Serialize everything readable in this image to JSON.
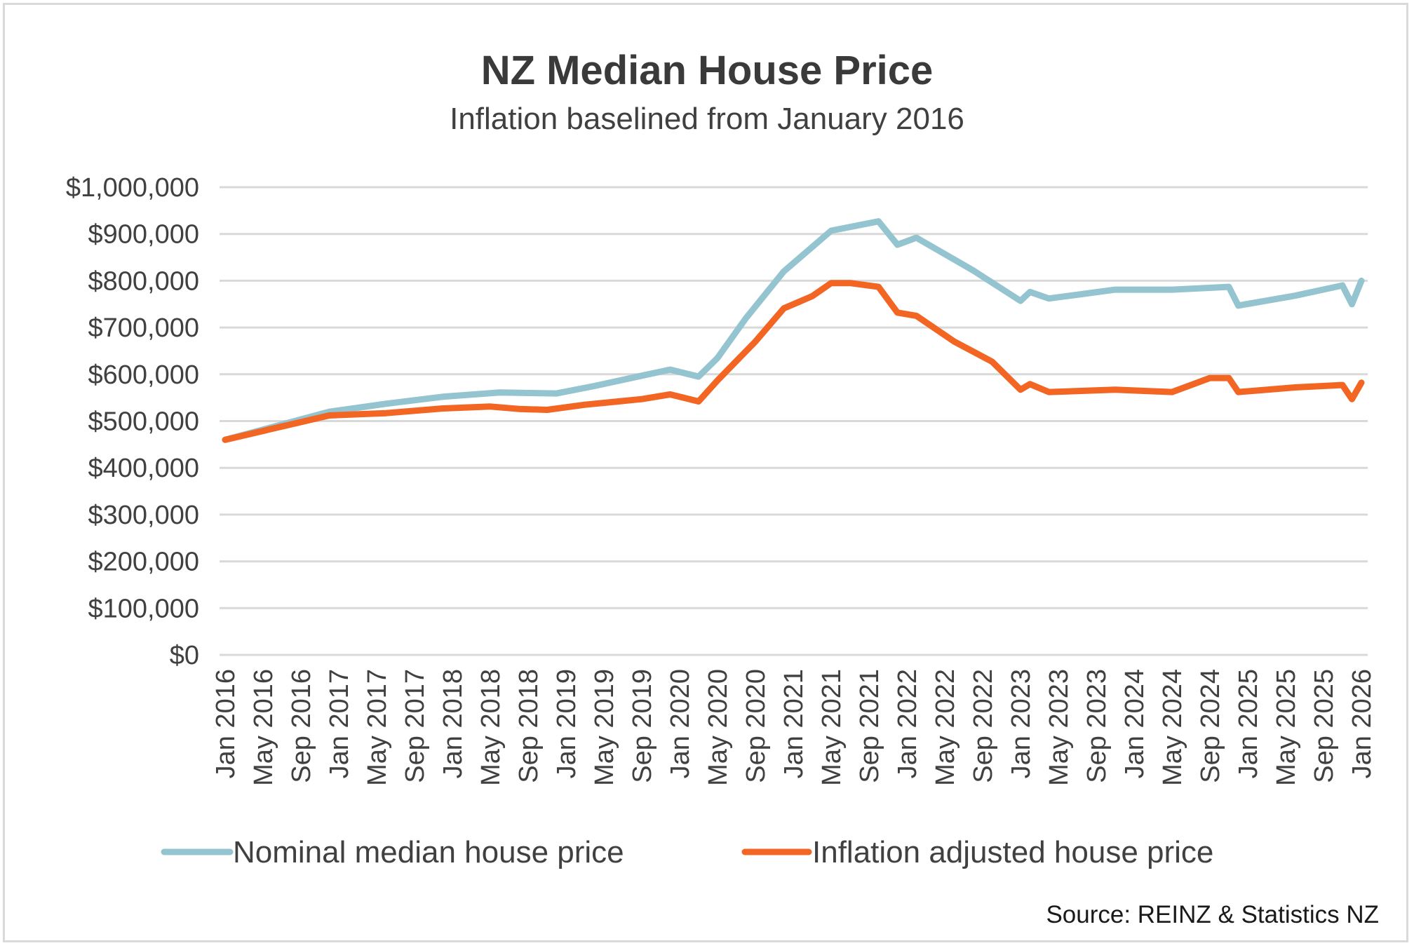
{
  "chart_data": {
    "type": "line",
    "title": "NZ Median House Price",
    "subtitle": "Inflation baselined from January 2016",
    "xlabel": "",
    "ylabel": "",
    "ylim": [
      0,
      1000000
    ],
    "y_ticks": [
      "$0",
      "$100,000",
      "$200,000",
      "$300,000",
      "$400,000",
      "$500,000",
      "$600,000",
      "$700,000",
      "$800,000",
      "$900,000",
      "$1,000,000"
    ],
    "x_range": [
      "2016-01",
      "2026-01"
    ],
    "x_ticks": [
      "Jan 2016",
      "May 2016",
      "Sep 2016",
      "Jan 2017",
      "May 2017",
      "Sep 2017",
      "Jan 2018",
      "May 2018",
      "Sep 2018",
      "Jan 2019",
      "May 2019",
      "Sep 2019",
      "Jan 2020",
      "May 2020",
      "Sep 2020",
      "Jan 2021",
      "May 2021",
      "Sep 2021",
      "Jan 2022",
      "May 2022",
      "Sep 2022",
      "Jan 2023",
      "May 2023",
      "Sep 2023",
      "Jan 2024",
      "May 2024",
      "Sep 2024",
      "Jan 2025",
      "May 2025",
      "Sep 2025",
      "Jan 2026"
    ],
    "grid": true,
    "legend_position": "bottom",
    "source": "Source: REINZ & Statistics NZ",
    "series": [
      {
        "name": "Nominal median house price",
        "color": "#93c4cf",
        "points": [
          [
            "2016-01",
            460000
          ],
          [
            "2016-12",
            520000
          ],
          [
            "2017-06",
            537000
          ],
          [
            "2017-12",
            552000
          ],
          [
            "2018-06",
            561000
          ],
          [
            "2018-12",
            559000
          ],
          [
            "2019-04",
            575000
          ],
          [
            "2019-09",
            597000
          ],
          [
            "2019-12",
            610000
          ],
          [
            "2020-03",
            595000
          ],
          [
            "2020-05",
            635000
          ],
          [
            "2020-08",
            720000
          ],
          [
            "2020-12",
            820000
          ],
          [
            "2021-05",
            907000
          ],
          [
            "2021-10",
            927000
          ],
          [
            "2021-12",
            877000
          ],
          [
            "2022-02",
            892000
          ],
          [
            "2022-08",
            822000
          ],
          [
            "2023-01",
            757000
          ],
          [
            "2023-02",
            776000
          ],
          [
            "2023-04",
            762000
          ],
          [
            "2023-11",
            781000
          ],
          [
            "2024-05",
            781000
          ],
          [
            "2024-11",
            787000
          ],
          [
            "2024-12",
            747000
          ],
          [
            "2025-06",
            768000
          ],
          [
            "2025-11",
            790000
          ],
          [
            "2025-12",
            750000
          ],
          [
            "2026-01",
            800000
          ]
        ]
      },
      {
        "name": "Inflation adjusted house price",
        "color": "#f26522",
        "points": [
          [
            "2016-01",
            460000
          ],
          [
            "2016-12",
            512000
          ],
          [
            "2017-06",
            517000
          ],
          [
            "2017-12",
            527000
          ],
          [
            "2018-05",
            531000
          ],
          [
            "2018-08",
            526000
          ],
          [
            "2018-11",
            524000
          ],
          [
            "2019-03",
            535000
          ],
          [
            "2019-09",
            547000
          ],
          [
            "2019-12",
            557000
          ],
          [
            "2020-03",
            542000
          ],
          [
            "2020-05",
            587000
          ],
          [
            "2020-09",
            670000
          ],
          [
            "2020-12",
            741000
          ],
          [
            "2021-03",
            767000
          ],
          [
            "2021-05",
            795000
          ],
          [
            "2021-07",
            795000
          ],
          [
            "2021-10",
            787000
          ],
          [
            "2021-12",
            732000
          ],
          [
            "2022-02",
            725000
          ],
          [
            "2022-06",
            670000
          ],
          [
            "2022-10",
            627000
          ],
          [
            "2023-01",
            567000
          ],
          [
            "2023-02",
            579000
          ],
          [
            "2023-04",
            562000
          ],
          [
            "2023-11",
            567000
          ],
          [
            "2024-05",
            562000
          ],
          [
            "2024-09",
            592000
          ],
          [
            "2024-11",
            592000
          ],
          [
            "2024-12",
            562000
          ],
          [
            "2025-06",
            572000
          ],
          [
            "2025-11",
            577000
          ],
          [
            "2025-12",
            547000
          ],
          [
            "2026-01",
            582000
          ]
        ]
      }
    ]
  }
}
